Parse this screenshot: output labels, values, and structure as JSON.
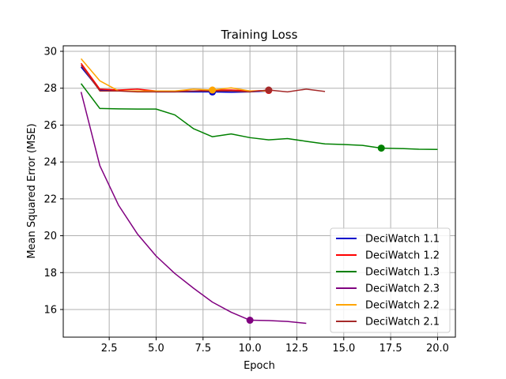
{
  "chart_data": {
    "type": "line",
    "title": "Training Loss",
    "xlabel": "Epoch",
    "ylabel": "Mean Squared Error (MSE)",
    "xlim": [
      0.05,
      20.95
    ],
    "ylim": [
      14.5,
      30.3
    ],
    "xticks": [
      "2.5",
      "5.0",
      "7.5",
      "10.0",
      "12.5",
      "15.0",
      "17.5",
      "20.0"
    ],
    "yticks": [
      "16",
      "18",
      "20",
      "22",
      "24",
      "26",
      "28",
      "30"
    ],
    "grid": true,
    "legend_position": "lower-right",
    "series": [
      {
        "name": "DeciWatch 1.1",
        "color": "#0000cc",
        "x": [
          1,
          2,
          3,
          4,
          5,
          6,
          7,
          8,
          9,
          10,
          11
        ],
        "y": [
          29.15,
          27.9,
          27.85,
          27.85,
          27.8,
          27.8,
          27.8,
          27.8,
          27.78,
          27.8,
          27.85
        ],
        "marker": {
          "x": 8,
          "y": 27.8
        }
      },
      {
        "name": "DeciWatch 1.2",
        "color": "#ff0000",
        "x": [
          1,
          2,
          3,
          4,
          5,
          6,
          7,
          8,
          9,
          10,
          11
        ],
        "y": [
          29.35,
          27.95,
          27.9,
          27.95,
          27.85,
          27.85,
          27.85,
          27.9,
          27.9,
          27.85,
          27.88
        ],
        "marker": {
          "x": 11,
          "y": 27.88
        }
      },
      {
        "name": "DeciWatch 1.3",
        "color": "#008000",
        "x": [
          1,
          2,
          3,
          4,
          5,
          6,
          7,
          8,
          9,
          10,
          11,
          12,
          13,
          14,
          15,
          16,
          17,
          18,
          19,
          20
        ],
        "y": [
          28.25,
          26.9,
          26.88,
          26.87,
          26.87,
          26.55,
          25.8,
          25.37,
          25.52,
          25.32,
          25.2,
          25.27,
          25.12,
          24.98,
          24.95,
          24.9,
          24.75,
          24.73,
          24.69,
          24.68
        ],
        "marker": {
          "x": 17,
          "y": 24.75
        }
      },
      {
        "name": "DeciWatch 2.3",
        "color": "#800080",
        "x": [
          1,
          2,
          3,
          4,
          5,
          6,
          7,
          8,
          9,
          10,
          11,
          12,
          13
        ],
        "y": [
          27.8,
          23.8,
          21.65,
          20.1,
          18.9,
          17.95,
          17.15,
          16.4,
          15.85,
          15.42,
          15.4,
          15.35,
          15.25
        ],
        "marker": {
          "x": 10,
          "y": 15.42
        }
      },
      {
        "name": "DeciWatch 2.2",
        "color": "#ffa500",
        "x": [
          1,
          2,
          3,
          4,
          5,
          6,
          7,
          8,
          9,
          10,
          11
        ],
        "y": [
          29.6,
          28.4,
          27.85,
          27.85,
          27.85,
          27.85,
          27.95,
          27.9,
          28.02,
          27.85,
          27.85
        ],
        "marker": {
          "x": 8,
          "y": 27.9
        }
      },
      {
        "name": "DeciWatch 2.1",
        "color": "#a52a2a",
        "x": [
          1,
          2,
          3,
          4,
          5,
          6,
          7,
          8,
          9,
          10,
          11,
          12,
          13,
          14
        ],
        "y": [
          29.25,
          27.85,
          27.85,
          27.8,
          27.8,
          27.8,
          27.85,
          27.85,
          27.85,
          27.8,
          27.9,
          27.8,
          27.95,
          27.82
        ],
        "marker": {
          "x": 11,
          "y": 27.9
        }
      }
    ]
  }
}
